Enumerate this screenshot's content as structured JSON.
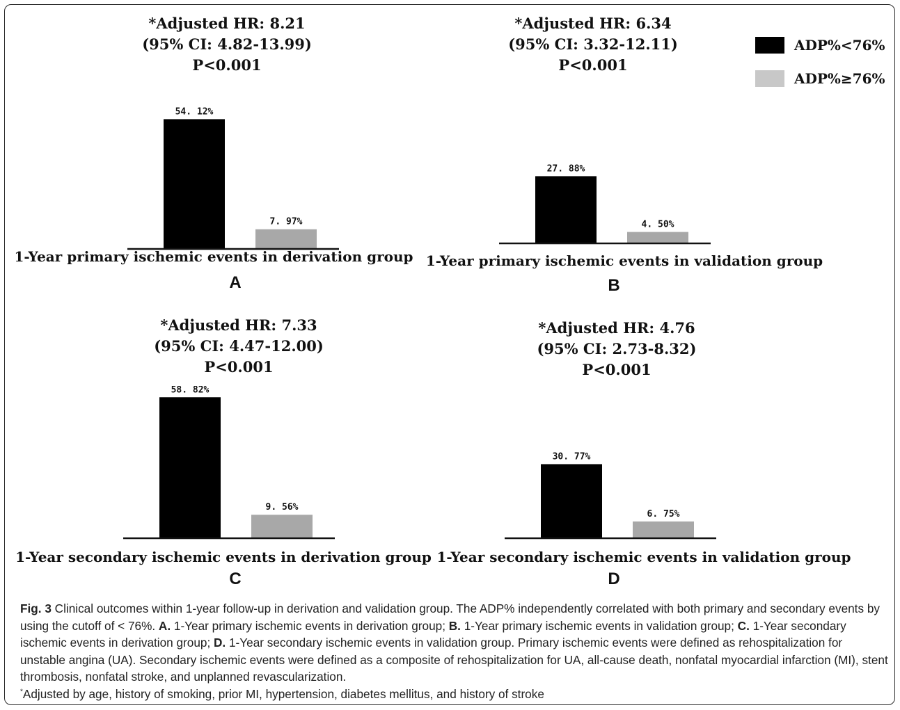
{
  "chart_data": [
    {
      "type": "bar",
      "panel": "A",
      "annotation": [
        "*Adjusted HR: 8.21",
        "(95% CI: 4.82-13.99)",
        "P<0.001"
      ],
      "categories": [
        "ADP%<76%",
        "ADP%≥76%"
      ],
      "values": [
        54.12,
        7.97
      ],
      "value_labels": [
        "54. 12%",
        "7. 97%"
      ],
      "title": "1-Year primary ischemic events in derivation group",
      "colors": [
        "#000000",
        "#a8a8a8"
      ]
    },
    {
      "type": "bar",
      "panel": "B",
      "annotation": [
        "*Adjusted HR: 6.34",
        "(95% CI: 3.32-12.11)",
        "P<0.001"
      ],
      "categories": [
        "ADP%<76%",
        "ADP%≥76%"
      ],
      "values": [
        27.88,
        4.5
      ],
      "value_labels": [
        "27. 88%",
        "4. 50%"
      ],
      "title": "1-Year primary ischemic events  in validation group",
      "colors": [
        "#000000",
        "#a8a8a8"
      ]
    },
    {
      "type": "bar",
      "panel": "C",
      "annotation": [
        "*Adjusted HR: 7.33",
        "(95% CI: 4.47-12.00)",
        "P<0.001"
      ],
      "categories": [
        "ADP%<76%",
        "ADP%≥76%"
      ],
      "values": [
        58.82,
        9.56
      ],
      "value_labels": [
        "58. 82%",
        "9. 56%"
      ],
      "title": "1-Year secondary ischemic events in derivation group",
      "colors": [
        "#000000",
        "#a8a8a8"
      ]
    },
    {
      "type": "bar",
      "panel": "D",
      "annotation": [
        "*Adjusted HR: 4.76",
        "(95% CI: 2.73-8.32)",
        "P<0.001"
      ],
      "categories": [
        "ADP%<76%",
        "ADP%≥76%"
      ],
      "values": [
        30.77,
        6.75
      ],
      "value_labels": [
        "30. 77%",
        "6. 75%"
      ],
      "title": "1-Year secondary ischemic events in validation group",
      "colors": [
        "#000000",
        "#a8a8a8"
      ]
    }
  ],
  "legend": {
    "items": [
      {
        "label": "ADP%<76%",
        "color": "#000000"
      },
      {
        "label": "ADP%≥76%",
        "color": "#c8c8c8"
      }
    ],
    "placement": "top-right"
  },
  "caption": {
    "fig_label": "Fig. 3",
    "intro": " Clinical outcomes within 1-year follow-up in derivation and validation group. The ADP% independently correlated with both primary and secondary events by using the cutoff of < 76%. ",
    "a_label": "A.",
    "a_text": " 1-Year primary ischemic events in derivation group; ",
    "b_label": "B.",
    "b_text": " 1-Year primary ischemic events in validation group; ",
    "c_label": "C.",
    "c_text": " 1-Year secondary ischemic events in derivation group; ",
    "d_label": "D.",
    "d_text": " 1-Year secondary ischemic events in validation group. Primary ischemic events were defined as rehospitalization for unstable angina (UA). Secondary ischemic events were defined as a composite of rehospitalization for UA, all-cause death, nonfatal myocardial infarction (MI), stent thrombosis, nonfatal stroke, and unplanned revascularization.",
    "footnote_mark": "*",
    "footnote": "Adjusted by age, history of smoking, prior MI, hypertension, diabetes mellitus, and history of stroke"
  }
}
